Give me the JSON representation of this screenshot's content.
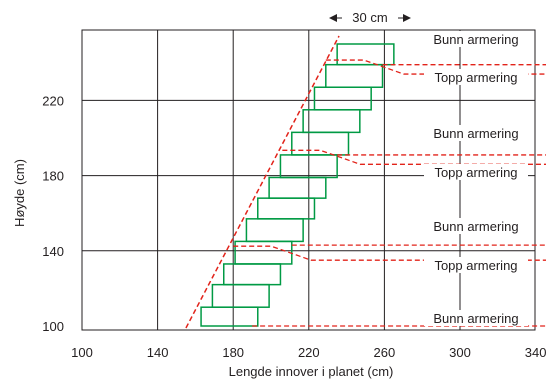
{
  "axes": {
    "xlabel": "Lengde innover i planet (cm)",
    "ylabel": "Høyde (cm)",
    "xticks": [
      "100",
      "140",
      "180",
      "220",
      "260",
      "300",
      "340"
    ],
    "yticks": [
      "100",
      "140",
      "180",
      "220"
    ]
  },
  "dimension_label": "30 cm",
  "labels": {
    "bunn": "Bunn armering",
    "topp": "Topp armering"
  },
  "annotations": [
    {
      "text": "Bunn armering",
      "kind": "bunn"
    },
    {
      "text": "Topp armering",
      "kind": "topp"
    },
    {
      "text": "Bunn armering",
      "kind": "bunn"
    },
    {
      "text": "Topp armering",
      "kind": "topp"
    },
    {
      "text": "Bunn armering",
      "kind": "bunn"
    },
    {
      "text": "Topp armering",
      "kind": "topp"
    },
    {
      "text": "Bunn armering",
      "kind": "bunn"
    }
  ],
  "chart_data": {
    "type": "diagram",
    "x_range": [
      100,
      340
    ],
    "y_range": [
      96,
      258
    ],
    "grid": true,
    "boxes": [
      {
        "x0": 163,
        "x1": 193,
        "y0": 100,
        "y1": 110
      },
      {
        "x0": 169,
        "x1": 199,
        "y0": 110,
        "y1": 122
      },
      {
        "x0": 175,
        "x1": 205,
        "y0": 122,
        "y1": 133
      },
      {
        "x0": 181,
        "x1": 211,
        "y0": 133,
        "y1": 145
      },
      {
        "x0": 187,
        "x1": 217,
        "y0": 145,
        "y1": 157
      },
      {
        "x0": 193,
        "x1": 223,
        "y0": 157,
        "y1": 168
      },
      {
        "x0": 199,
        "x1": 229,
        "y0": 168,
        "y1": 179
      },
      {
        "x0": 205,
        "x1": 235,
        "y0": 179,
        "y1": 191
      },
      {
        "x0": 211,
        "x1": 241,
        "y0": 191,
        "y1": 203
      },
      {
        "x0": 217,
        "x1": 247,
        "y0": 203,
        "y1": 215
      },
      {
        "x0": 223,
        "x1": 253,
        "y0": 215,
        "y1": 227
      },
      {
        "x0": 229,
        "x1": 259,
        "y0": 227,
        "y1": 239
      },
      {
        "x0": 235,
        "x1": 265,
        "y0": 239,
        "y1": 250
      }
    ],
    "boundary_line": {
      "x": [
        155,
        236
      ],
      "y": [
        100,
        250
      ]
    },
    "level_lines": [
      {
        "kind": "bunn",
        "y": 100,
        "x_start": 190
      },
      {
        "kind": "topp",
        "y": 135,
        "x_start": 180
      },
      {
        "kind": "bunn",
        "y": 143,
        "x_start": 211
      },
      {
        "kind": "topp",
        "y": 186,
        "x_start": 206
      },
      {
        "kind": "bunn",
        "y": 191,
        "x_start": 235
      },
      {
        "kind": "topp",
        "y": 234,
        "x_start": 229
      },
      {
        "kind": "bunn",
        "y": 239,
        "x_start": 259
      }
    ],
    "colors": {
      "grid": "#231f20",
      "box": "#009a44",
      "dashed": "#e2231a",
      "text": "#231f20"
    }
  }
}
